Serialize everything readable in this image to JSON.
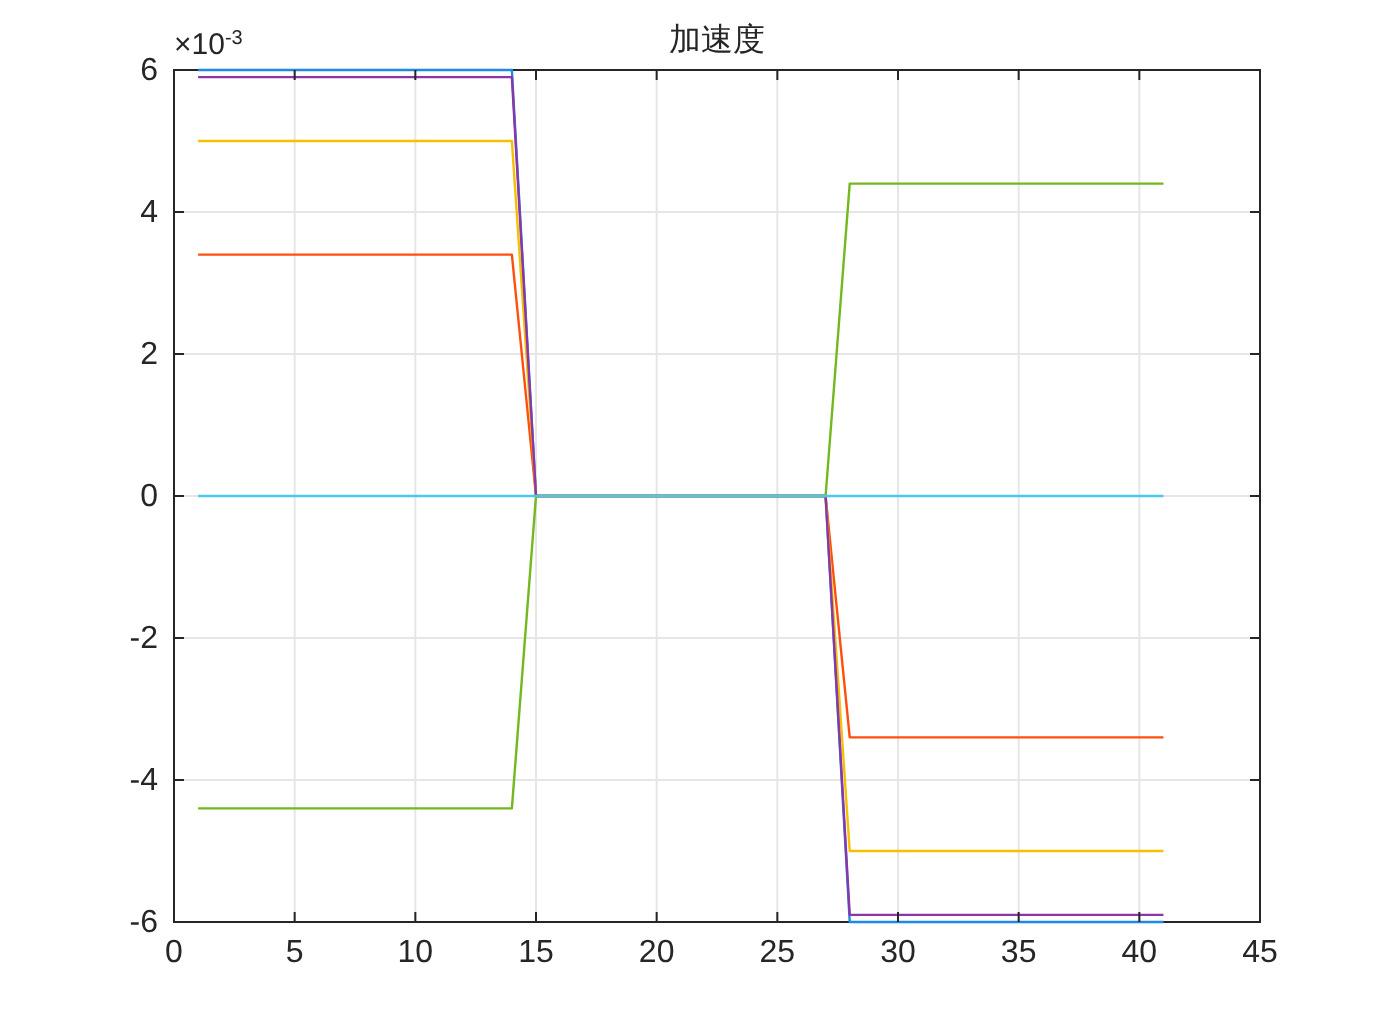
{
  "chart_data": {
    "type": "line",
    "title": "加速度",
    "annotations": [
      "×10$^{-3}$"
    ],
    "xlim": [
      0,
      45
    ],
    "xticks": [
      0,
      5,
      10,
      15,
      20,
      25,
      30,
      35,
      40,
      45
    ],
    "ylim": [
      -6,
      6
    ],
    "yticks": [
      -6,
      -4,
      -2,
      0,
      2,
      4,
      6
    ],
    "grid": true,
    "line_style": "solid",
    "marker": "none",
    "series": [
      {
        "color": "#1e88e5",
        "x": [
          1,
          14,
          15,
          27,
          28,
          41
        ],
        "values": [
          6.0,
          6.0,
          0,
          0,
          -6.0,
          -6.0
        ]
      },
      {
        "color": "#ff4f0f",
        "x": [
          1,
          14,
          15,
          27,
          28,
          41
        ],
        "values": [
          3.4,
          3.4,
          0,
          0,
          -3.4,
          -3.4
        ]
      },
      {
        "color": "#f5c000",
        "x": [
          1,
          14,
          15,
          27,
          28,
          41
        ],
        "values": [
          5.0,
          5.0,
          0,
          0,
          -5.0,
          -5.0
        ]
      },
      {
        "color": "#8a36a8",
        "x": [
          1,
          14,
          15,
          27,
          28,
          41
        ],
        "values": [
          5.9,
          5.9,
          0,
          0,
          -5.9,
          -5.9
        ]
      },
      {
        "color": "#72b81e",
        "x": [
          1,
          14,
          15,
          27,
          28,
          41
        ],
        "values": [
          -4.4,
          -4.4,
          0,
          0,
          4.4,
          4.4
        ]
      },
      {
        "color": "#4ac8f5",
        "x": [
          1,
          14,
          15,
          27,
          28,
          41
        ],
        "values": [
          0,
          0,
          0,
          0,
          0,
          0
        ]
      }
    ]
  }
}
